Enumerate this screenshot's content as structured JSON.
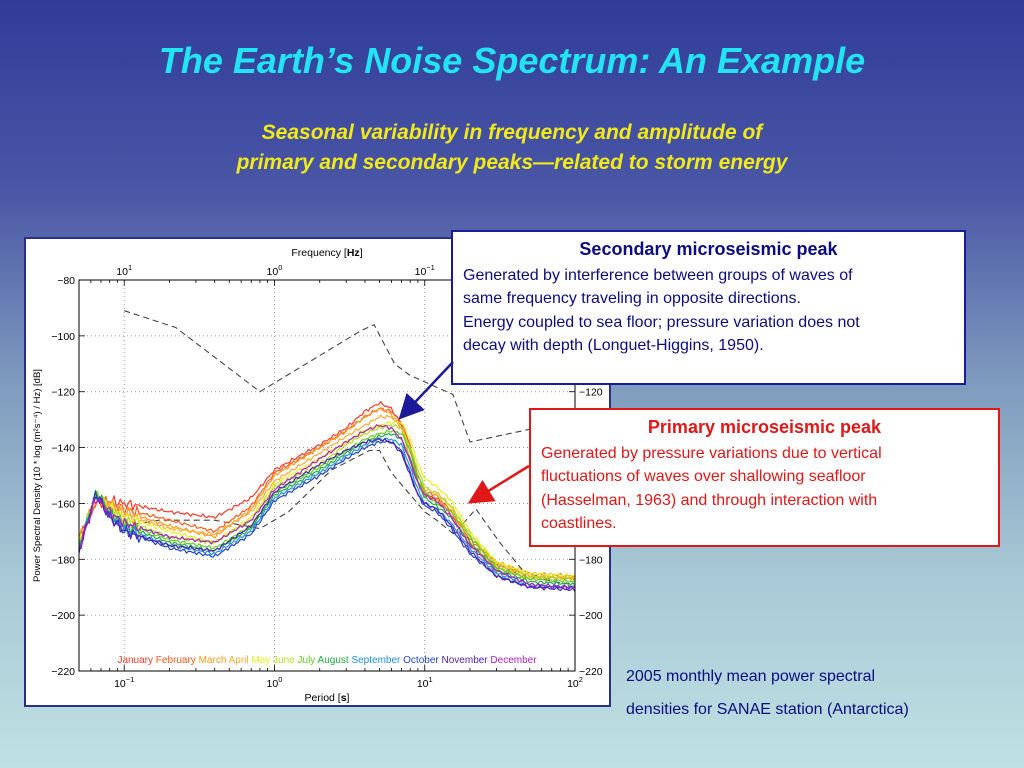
{
  "slide": {
    "title": "The Earth’s Noise Spectrum: An Example",
    "subtitle_line1": "Seasonal variability in frequency and amplitude of",
    "subtitle_line2": "primary and secondary peaks—related to storm energy"
  },
  "callouts": {
    "secondary": {
      "title": "Secondary microseismic peak",
      "lines": [
        "Generated by interference between groups of waves of",
        "same frequency traveling in opposite directions.",
        "Energy coupled to sea floor; pressure variation does not",
        "decay with depth (Longuet-Higgins, 1950)."
      ]
    },
    "primary": {
      "title": "Primary microseismic peak",
      "lines": [
        "Generated by pressure variations due to vertical",
        "fluctuations of waves over shallowing seafloor",
        "(Hasselman, 1963) and through interaction with",
        "coastlines."
      ]
    }
  },
  "caption": {
    "line1": "2005 monthly mean power spectral",
    "line2": "densities for SANAE station (Antarctica)"
  },
  "colors": {
    "title": "#22e4f2",
    "subtitle": "#f2ea16",
    "secondary_border": "#1a1a9a",
    "primary_border": "#e01818"
  },
  "chart_data": {
    "type": "line",
    "xscale": "log",
    "xlabel_prefix": "Period [",
    "xlabel_unit": "s",
    "xlabel_suffix": "]",
    "top_label_prefix": "Frequency [",
    "top_label_unit": "Hz",
    "top_label_suffix": "]",
    "ylabel": "Power Spectral Density (10 * log (m²s⁻⁴) / Hz) [dB]",
    "xlim": [
      0.05,
      100
    ],
    "ylim": [
      -220,
      -80
    ],
    "yticks": [
      -80,
      -100,
      -120,
      -140,
      -160,
      -180,
      -200,
      -220
    ],
    "right_yticks": [
      -120,
      -140,
      -160,
      -180,
      -200,
      -220
    ],
    "bottom_ticks": [
      {
        "base": "10",
        "exp": "−1",
        "value": 0.1
      },
      {
        "base": "10",
        "exp": "0",
        "value": 1
      },
      {
        "base": "10",
        "exp": "1",
        "value": 10
      },
      {
        "base": "10",
        "exp": "2",
        "value": 100
      }
    ],
    "top_ticks": [
      {
        "base": "10",
        "exp": "1",
        "value": 0.1
      },
      {
        "base": "10",
        "exp": "0",
        "value": 1
      },
      {
        "base": "10",
        "exp": "−1",
        "value": 10
      }
    ],
    "grid": true,
    "legend_position": "bottom",
    "noise_models": {
      "high": {
        "x": [
          0.1,
          0.22,
          0.8,
          3.8,
          4.6,
          6.3,
          7.9,
          15.4,
          20,
          100
        ],
        "y": [
          -91,
          -97,
          -120,
          -98,
          -96,
          -110,
          -114,
          -121,
          -138,
          -130
        ]
      },
      "low": {
        "x": [
          0.1,
          0.17,
          0.4,
          0.8,
          1.24,
          2.4,
          4.3,
          5,
          6,
          10,
          12,
          15.6,
          21.9,
          31.6,
          45,
          70,
          100
        ],
        "y": [
          -168,
          -166,
          -166,
          -169,
          -163,
          -148,
          -141,
          -141,
          -149,
          -163,
          -166,
          -171,
          -162,
          -174,
          -184,
          -188,
          -189
        ]
      }
    },
    "series": [
      {
        "name": "January",
        "color": "#ff3a2a",
        "x": [
          0.05,
          0.065,
          0.08,
          0.1,
          0.2,
          0.4,
          0.7,
          1,
          2,
          3,
          4,
          5,
          6,
          7,
          8,
          9,
          10,
          12,
          15,
          20,
          30,
          50,
          100
        ],
        "y": [
          -172,
          -160,
          -159,
          -160,
          -163,
          -165,
          -158,
          -148,
          -139,
          -133,
          -127,
          -124,
          -126,
          -132,
          -141,
          -152,
          -157,
          -158,
          -164,
          -175,
          -182,
          -186,
          -187
        ]
      },
      {
        "name": "February",
        "color": "#ff5a1a",
        "x": [
          0.05,
          0.065,
          0.08,
          0.1,
          0.2,
          0.4,
          0.7,
          1,
          2,
          3,
          4,
          5,
          6,
          7,
          8,
          9,
          10,
          12,
          15,
          20,
          30,
          50,
          100
        ],
        "y": [
          -173,
          -158,
          -160,
          -162,
          -166,
          -170,
          -161,
          -149,
          -140,
          -134,
          -129,
          -126,
          -127,
          -131,
          -139,
          -150,
          -156,
          -157,
          -163,
          -173,
          -181,
          -185,
          -186
        ]
      },
      {
        "name": "March",
        "color": "#ff9a1a",
        "x": [
          0.05,
          0.065,
          0.08,
          0.1,
          0.2,
          0.4,
          0.7,
          1,
          2,
          3,
          4,
          5,
          6,
          7,
          8,
          9,
          10,
          12,
          15,
          20,
          30,
          50,
          100
        ],
        "y": [
          -173,
          -157,
          -160,
          -163,
          -168,
          -172,
          -162,
          -150,
          -140,
          -134,
          -129,
          -126,
          -128,
          -133,
          -144,
          -152,
          -157,
          -159,
          -162,
          -174,
          -183,
          -187,
          -186
        ]
      },
      {
        "name": "April",
        "color": "#ffaa30",
        "x": [
          0.05,
          0.065,
          0.08,
          0.1,
          0.2,
          0.4,
          0.7,
          1,
          2,
          3,
          4,
          5,
          6,
          7,
          8,
          9,
          10,
          12,
          15,
          20,
          30,
          50,
          100
        ],
        "y": [
          -174,
          -158,
          -161,
          -164,
          -169,
          -171,
          -163,
          -152,
          -142,
          -136,
          -132,
          -129,
          -129,
          -133,
          -141,
          -150,
          -155,
          -156,
          -161,
          -172,
          -181,
          -186,
          -187
        ]
      },
      {
        "name": "May",
        "color": "#e8f020",
        "x": [
          0.05,
          0.065,
          0.08,
          0.1,
          0.2,
          0.4,
          0.7,
          1,
          2,
          3,
          4,
          5,
          6,
          7,
          8,
          9,
          10,
          12,
          15,
          20,
          30,
          50,
          100
        ],
        "y": [
          -174,
          -157,
          -161,
          -165,
          -170,
          -174,
          -165,
          -153,
          -144,
          -138,
          -134,
          -132,
          -131,
          -131,
          -137,
          -146,
          -151,
          -154,
          -159,
          -170,
          -181,
          -185,
          -186
        ]
      },
      {
        "name": "June",
        "color": "#b0e020",
        "x": [
          0.05,
          0.065,
          0.08,
          0.1,
          0.2,
          0.4,
          0.7,
          1,
          2,
          3,
          4,
          5,
          6,
          7,
          8,
          9,
          10,
          12,
          15,
          20,
          30,
          50,
          100
        ],
        "y": [
          -175,
          -156,
          -162,
          -166,
          -172,
          -174,
          -166,
          -154,
          -146,
          -139,
          -135,
          -133,
          -132,
          -133,
          -140,
          -148,
          -154,
          -157,
          -161,
          -171,
          -182,
          -186,
          -187
        ]
      },
      {
        "name": "July",
        "color": "#60d020",
        "x": [
          0.05,
          0.065,
          0.08,
          0.1,
          0.2,
          0.4,
          0.7,
          1,
          2,
          3,
          4,
          5,
          6,
          7,
          8,
          9,
          10,
          12,
          15,
          20,
          30,
          50,
          100
        ],
        "y": [
          -175,
          -157,
          -163,
          -167,
          -173,
          -176,
          -168,
          -156,
          -147,
          -141,
          -137,
          -135,
          -134,
          -135,
          -141,
          -150,
          -156,
          -160,
          -163,
          -172,
          -183,
          -187,
          -188
        ]
      },
      {
        "name": "August",
        "color": "#20b040",
        "x": [
          0.05,
          0.065,
          0.08,
          0.1,
          0.2,
          0.4,
          0.7,
          1,
          2,
          3,
          4,
          5,
          6,
          7,
          8,
          9,
          10,
          12,
          15,
          20,
          30,
          50,
          100
        ],
        "y": [
          -176,
          -156,
          -163,
          -168,
          -174,
          -177,
          -169,
          -157,
          -148,
          -142,
          -138,
          -136,
          -135,
          -137,
          -144,
          -152,
          -158,
          -161,
          -165,
          -174,
          -184,
          -188,
          -189
        ]
      },
      {
        "name": "September",
        "color": "#2090e0",
        "x": [
          0.05,
          0.065,
          0.08,
          0.1,
          0.2,
          0.4,
          0.7,
          1,
          2,
          3,
          4,
          5,
          6,
          7,
          8,
          9,
          10,
          12,
          15,
          20,
          30,
          50,
          100
        ],
        "y": [
          -176,
          -157,
          -164,
          -169,
          -175,
          -178,
          -170,
          -158,
          -149,
          -143,
          -139,
          -137,
          -137,
          -139,
          -147,
          -155,
          -160,
          -162,
          -167,
          -176,
          -185,
          -189,
          -190
        ]
      },
      {
        "name": "October",
        "color": "#2040d0",
        "x": [
          0.05,
          0.065,
          0.08,
          0.1,
          0.2,
          0.4,
          0.7,
          1,
          2,
          3,
          4,
          5,
          6,
          7,
          8,
          9,
          10,
          12,
          15,
          20,
          30,
          50,
          100
        ],
        "y": [
          -177,
          -156,
          -165,
          -170,
          -176,
          -179,
          -171,
          -159,
          -150,
          -144,
          -140,
          -138,
          -138,
          -141,
          -149,
          -157,
          -161,
          -163,
          -169,
          -178,
          -186,
          -190,
          -190
        ]
      },
      {
        "name": "November",
        "color": "#5020b0",
        "x": [
          0.05,
          0.065,
          0.08,
          0.1,
          0.2,
          0.4,
          0.7,
          1,
          2,
          3,
          4,
          5,
          6,
          7,
          8,
          9,
          10,
          12,
          15,
          20,
          30,
          50,
          100
        ],
        "y": [
          -177,
          -157,
          -165,
          -170,
          -175,
          -177,
          -168,
          -156,
          -146,
          -141,
          -138,
          -137,
          -138,
          -142,
          -150,
          -157,
          -160,
          -162,
          -168,
          -177,
          -186,
          -190,
          -191
        ]
      },
      {
        "name": "December",
        "color": "#b020c0",
        "x": [
          0.05,
          0.065,
          0.08,
          0.1,
          0.2,
          0.4,
          0.7,
          1,
          2,
          3,
          4,
          5,
          6,
          7,
          8,
          9,
          10,
          12,
          15,
          20,
          30,
          50,
          100
        ],
        "y": [
          -176,
          -158,
          -163,
          -167,
          -172,
          -174,
          -166,
          -155,
          -144,
          -138,
          -134,
          -132,
          -133,
          -137,
          -145,
          -153,
          -157,
          -159,
          -165,
          -175,
          -184,
          -189,
          -190
        ]
      }
    ]
  }
}
